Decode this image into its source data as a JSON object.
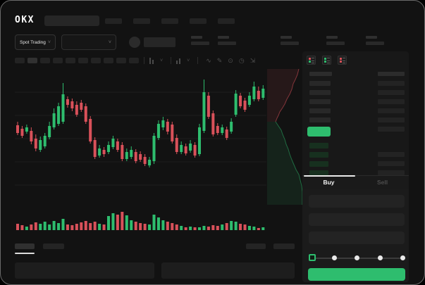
{
  "colors": {
    "green": "#2ebd6e",
    "red": "#d9515a",
    "grid": "#1d1d1d",
    "depth_ask_fill": "rgba(217,81,90,0.10)",
    "depth_ask_line": "rgba(217,81,90,0.55)",
    "depth_bid_fill": "rgba(46,189,110,0.10)",
    "depth_bid_line": "rgba(46,189,110,0.50)"
  },
  "header": {
    "logo_text": "OKX"
  },
  "subheader": {
    "market_selector_label": "Spot Trading",
    "chevron": "˅"
  },
  "toolbar": {
    "interval_count": 10,
    "icons": [
      "∿",
      "✎",
      "⊙",
      "◷",
      "⇲"
    ]
  },
  "order_book": {
    "mode_icons": [
      {
        "name": "book-combined-icon",
        "top": "red",
        "bottom": "green"
      },
      {
        "name": "book-bids-icon",
        "top": "green",
        "bottom": "green"
      },
      {
        "name": "book-asks-icon",
        "top": "red",
        "bottom": "red"
      }
    ],
    "ask_rows": 6,
    "bid_rows": 4,
    "bid_amount_present": [
      false,
      true,
      true,
      true
    ]
  },
  "trade_panel": {
    "buy_label": "Buy",
    "sell_label": "Sell",
    "field_count": 3,
    "slider_stops": 5
  },
  "chart_data": [
    {
      "type": "candlestick",
      "title": "",
      "xlabel": "",
      "ylabel": "",
      "ylim": [
        0,
        190
      ],
      "x_start": 2,
      "x_step": 6.45,
      "body_width": 4,
      "grid": true,
      "gridline_values": [
        28,
        61,
        94,
        127,
        160
      ],
      "candles": [
        [
          113,
          102,
          99,
          118
        ],
        [
          108,
          98,
          95,
          112
        ],
        [
          104,
          110,
          101,
          114
        ],
        [
          105,
          90,
          86,
          110
        ],
        [
          94,
          80,
          76,
          100
        ],
        [
          78,
          92,
          75,
          97
        ],
        [
          83,
          98,
          80,
          102
        ],
        [
          96,
          112,
          93,
          118
        ],
        [
          110,
          130,
          107,
          137
        ],
        [
          115,
          140,
          112,
          145
        ],
        [
          118,
          157,
          115,
          173
        ],
        [
          150,
          142,
          138,
          154
        ],
        [
          147,
          137,
          133,
          151
        ],
        [
          142,
          128,
          125,
          147
        ],
        [
          145,
          135,
          132,
          149
        ],
        [
          140,
          118,
          115,
          144
        ],
        [
          122,
          90,
          87,
          126
        ],
        [
          92,
          68,
          65,
          96
        ],
        [
          70,
          80,
          67,
          85
        ],
        [
          78,
          72,
          68,
          82
        ],
        [
          75,
          85,
          72,
          90
        ],
        [
          82,
          94,
          79,
          98
        ],
        [
          90,
          78,
          75,
          94
        ],
        [
          85,
          65,
          62,
          89
        ],
        [
          65,
          75,
          62,
          80
        ],
        [
          68,
          78,
          65,
          83
        ],
        [
          75,
          62,
          59,
          79
        ],
        [
          72,
          64,
          61,
          76
        ],
        [
          68,
          58,
          55,
          72
        ],
        [
          56,
          64,
          53,
          68
        ],
        [
          62,
          98,
          58,
          102
        ],
        [
          95,
          115,
          92,
          120
        ],
        [
          110,
          120,
          106,
          125
        ],
        [
          118,
          104,
          100,
          122
        ],
        [
          114,
          90,
          87,
          118
        ],
        [
          95,
          75,
          72,
          100
        ],
        [
          75,
          85,
          72,
          90
        ],
        [
          83,
          73,
          70,
          87
        ],
        [
          77,
          87,
          74,
          92
        ],
        [
          85,
          70,
          67,
          89
        ],
        [
          72,
          110,
          69,
          115
        ],
        [
          105,
          160,
          102,
          178
        ],
        [
          155,
          125,
          122,
          160
        ],
        [
          130,
          100,
          97,
          134
        ],
        [
          112,
          102,
          99,
          116
        ],
        [
          102,
          110,
          99,
          114
        ],
        [
          107,
          95,
          92,
          111
        ],
        [
          104,
          118,
          101,
          123
        ],
        [
          128,
          158,
          125,
          163
        ],
        [
          155,
          140,
          137,
          159
        ],
        [
          148,
          135,
          132,
          152
        ],
        [
          142,
          155,
          139,
          160
        ],
        [
          150,
          168,
          147,
          175
        ],
        [
          162,
          150,
          147,
          168
        ],
        [
          152,
          165,
          149,
          170
        ]
      ]
    },
    {
      "type": "bar",
      "name": "volume",
      "baseline": 32,
      "values": [
        9,
        7,
        5,
        8,
        11,
        9,
        12,
        8,
        13,
        10,
        16,
        8,
        7,
        9,
        11,
        13,
        10,
        12,
        9,
        8,
        20,
        24,
        22,
        26,
        21,
        14,
        12,
        10,
        9,
        8,
        22,
        18,
        14,
        12,
        10,
        8,
        6,
        4,
        5,
        4,
        4,
        6,
        5,
        7,
        6,
        8,
        10,
        13,
        12,
        9,
        8,
        6,
        5,
        3,
        4
      ]
    },
    {
      "type": "area",
      "name": "depth",
      "series": [
        {
          "name": "asks",
          "color": "red",
          "points": [
            [
              45,
              0
            ],
            [
              43,
              8
            ],
            [
              40,
              15
            ],
            [
              37,
              21
            ],
            [
              35,
              29
            ],
            [
              32,
              36
            ],
            [
              28,
              43
            ],
            [
              25,
              50
            ],
            [
              22,
              55
            ],
            [
              18,
              61
            ],
            [
              16,
              66
            ],
            [
              14,
              70
            ],
            [
              12,
              75
            ]
          ]
        },
        {
          "name": "bids",
          "color": "green",
          "points": [
            [
              12,
              75
            ],
            [
              16,
              81
            ],
            [
              20,
              87
            ],
            [
              22,
              93
            ],
            [
              25,
              100
            ],
            [
              27,
              107
            ],
            [
              30,
              114
            ],
            [
              32,
              121
            ],
            [
              35,
              129
            ],
            [
              38,
              136
            ],
            [
              41,
              143
            ],
            [
              45,
              150
            ],
            [
              47,
              158
            ],
            [
              49,
              166
            ],
            [
              50,
              175
            ],
            [
              50,
              193
            ]
          ]
        }
      ]
    }
  ]
}
